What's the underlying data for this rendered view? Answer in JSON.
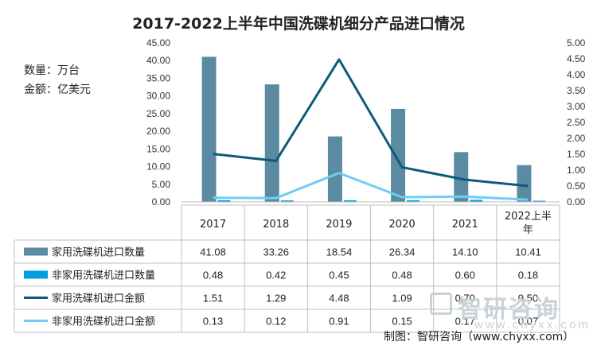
{
  "chart_data": {
    "type": "bar",
    "title": "2017-2022上半年中国洗碟机细分产品进口情况",
    "unit_quantity": "数量：万台",
    "unit_amount": "金额：亿美元",
    "categories": [
      "2017",
      "2018",
      "2019",
      "2020",
      "2021",
      "2022上半年"
    ],
    "y_left": {
      "min": 0,
      "max": 45,
      "ticks": [
        "0.00",
        "5.00",
        "10.00",
        "15.00",
        "20.00",
        "25.00",
        "30.00",
        "35.00",
        "40.00",
        "45.00"
      ]
    },
    "y_right": {
      "min": 0,
      "max": 5,
      "ticks": [
        "0.00",
        "0.50",
        "1.00",
        "1.50",
        "2.00",
        "2.50",
        "3.00",
        "3.50",
        "4.00",
        "4.50",
        "5.00"
      ]
    },
    "series": [
      {
        "name": "家用洗碟机进口数量",
        "type": "bar",
        "axis": "left",
        "color": "#5b8ba3",
        "values": [
          41.08,
          33.26,
          18.54,
          26.34,
          14.1,
          10.41
        ],
        "labels": [
          "41.08",
          "33.26",
          "18.54",
          "26.34",
          "14.10",
          "10.41"
        ]
      },
      {
        "name": "非家用洗碟机进口数量",
        "type": "bar",
        "axis": "left",
        "color": "#00a0e0",
        "values": [
          0.48,
          0.42,
          0.45,
          0.48,
          0.6,
          0.18
        ],
        "labels": [
          "0.48",
          "0.42",
          "0.45",
          "0.48",
          "0.60",
          "0.18"
        ]
      },
      {
        "name": "家用洗碟机进口金额",
        "type": "line",
        "axis": "right",
        "color": "#0d5a7a",
        "values": [
          1.51,
          1.29,
          4.48,
          1.09,
          0.7,
          0.5
        ],
        "labels": [
          "1.51",
          "1.29",
          "4.48",
          "1.09",
          "0.70",
          "0.50"
        ]
      },
      {
        "name": "非家用洗碟机进口金额",
        "type": "line",
        "axis": "right",
        "color": "#6fcdf5",
        "values": [
          0.13,
          0.12,
          0.91,
          0.15,
          0.17,
          0.07
        ],
        "labels": [
          "0.13",
          "0.12",
          "0.91",
          "0.15",
          "0.17",
          "0.07"
        ]
      }
    ],
    "grid": false,
    "legend": "data-table"
  },
  "watermark": {
    "brand": "智研咨询",
    "url": "www.chyxx.com"
  },
  "source": "制图：智研咨询（www.chyxx.com）"
}
